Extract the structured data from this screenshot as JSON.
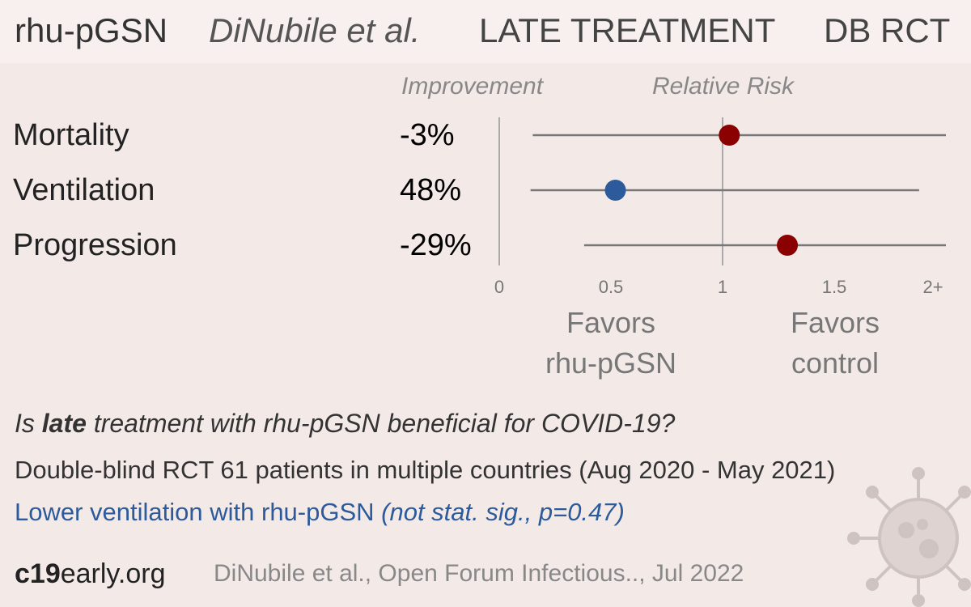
{
  "header": {
    "treatment": "rhu-pGSN",
    "authors": "DiNubile et al.",
    "stage": "LATE TREATMENT",
    "design": "DB RCT"
  },
  "columns": {
    "improvement": "Improvement",
    "relative_risk": "Relative Risk"
  },
  "chart_data": {
    "type": "forest",
    "x_axis": {
      "ticks": [
        "0",
        "0.5",
        "1",
        "1.5",
        "2+"
      ],
      "tick_values": [
        0,
        0.5,
        1,
        1.5,
        2
      ],
      "range": [
        0,
        2
      ],
      "reference_line": 1
    },
    "outcomes": [
      {
        "name": "Mortality",
        "improvement": "-3%",
        "rr": 1.03,
        "ci_low": 0.15,
        "ci_high": 2.0,
        "color": "#8b0000"
      },
      {
        "name": "Ventilation",
        "improvement": "48%",
        "rr": 0.52,
        "ci_low": 0.14,
        "ci_high": 1.88,
        "color": "#2c5a9a"
      },
      {
        "name": "Progression",
        "improvement": "-29%",
        "rr": 1.29,
        "ci_low": 0.38,
        "ci_high": 2.0,
        "color": "#8b0000"
      }
    ],
    "favors_left": [
      "Favors",
      "rhu-pGSN"
    ],
    "favors_right": [
      "Favors",
      "control"
    ]
  },
  "summary": {
    "question_prefix": "Is ",
    "question_bold": "late",
    "question_rest": " treatment with rhu-pGSN beneficial for COVID-19?",
    "design": "Double-blind RCT 61 patients in multiple countries (Aug 2020 - May 2021)",
    "result_main": "Lower ventilation with rhu-pGSN ",
    "result_note": "(not stat. sig., p=0.47)"
  },
  "footer": {
    "site_bold": "c19",
    "site_rest": "early.org",
    "citation": "DiNubile et al., Open Forum Infectious.., Jul 2022"
  }
}
